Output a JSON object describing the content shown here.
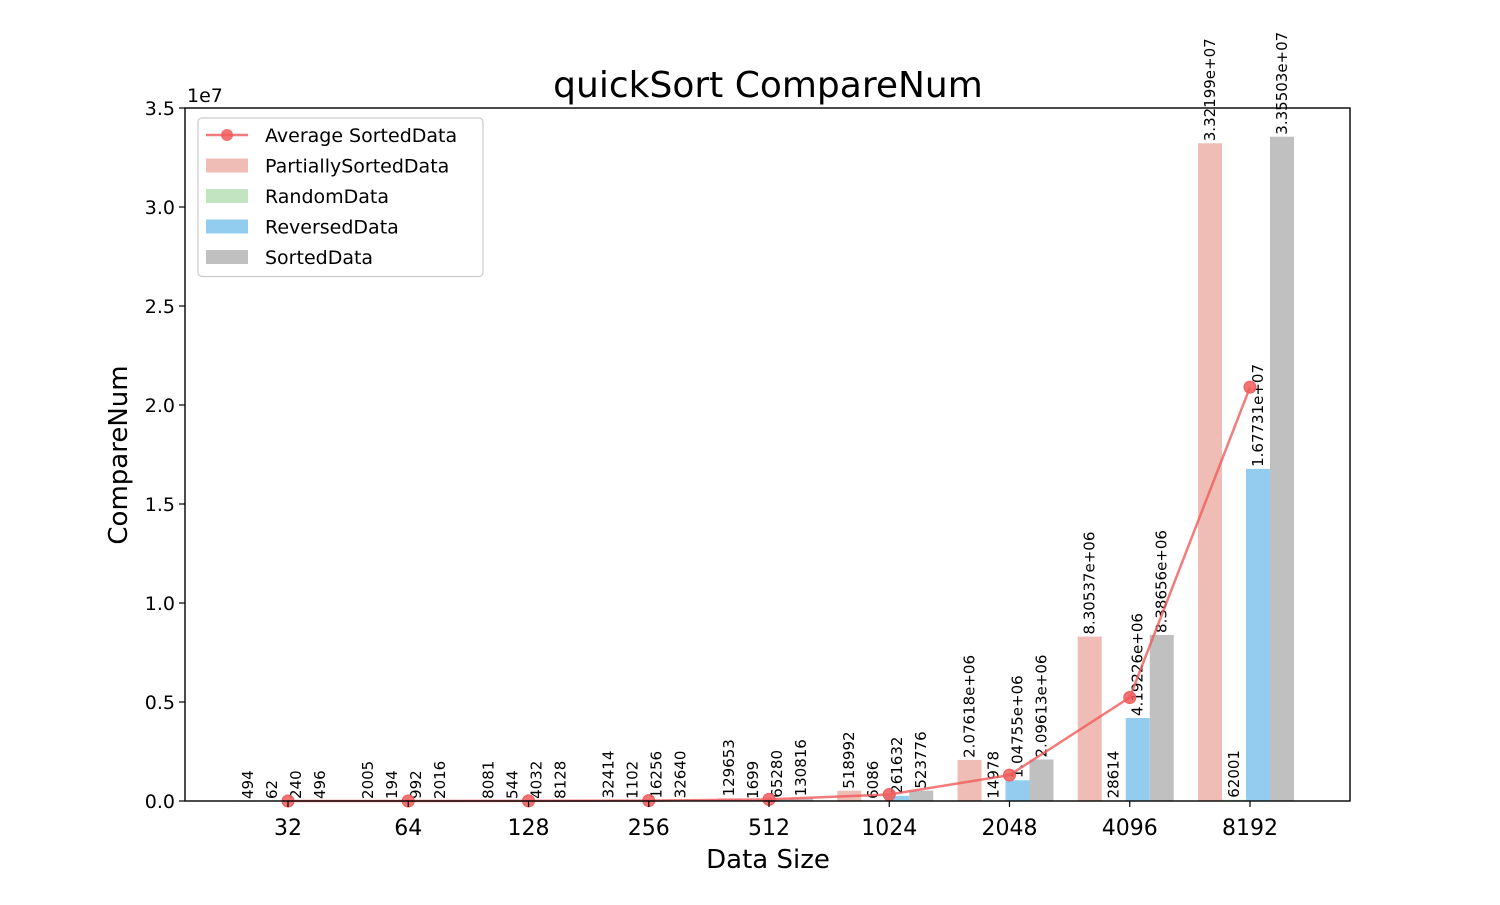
{
  "chart_data": {
    "type": "bar",
    "title": "quickSort CompareNum",
    "xlabel": "Data Size",
    "ylabel": "CompareNum",
    "y_scale_label": "1e7",
    "categories": [
      "32",
      "64",
      "128",
      "256",
      "512",
      "1024",
      "2048",
      "4096",
      "8192"
    ],
    "ylim": [
      0,
      35000000
    ],
    "yticks": [
      0,
      5000000,
      10000000,
      15000000,
      20000000,
      25000000,
      30000000,
      35000000
    ],
    "ytick_labels": [
      "0.0",
      "0.5",
      "1.0",
      "1.5",
      "2.0",
      "2.5",
      "3.0",
      "3.5"
    ],
    "grid": false,
    "legend_position": "top-left",
    "series": [
      {
        "name": "PartiallySortedData",
        "kind": "bar",
        "color": "#efbdb5",
        "values": [
          494,
          2005,
          8081,
          32414,
          129653,
          518992,
          2076180,
          8305370,
          33219900
        ],
        "labels": [
          "494",
          "2005",
          "8081",
          "32414",
          "129653",
          "518992",
          "2.07618e+06",
          "8.30537e+06",
          "3.32199e+07"
        ]
      },
      {
        "name": "RandomData",
        "kind": "bar",
        "color": "#c3e4c0",
        "values": [
          62,
          194,
          544,
          1102,
          1699,
          6086,
          14978,
          28614,
          62001
        ],
        "labels": [
          "62",
          "194",
          "544",
          "1102",
          "1699",
          "6086",
          "14978",
          "28614",
          "62001"
        ]
      },
      {
        "name": "ReversedData",
        "kind": "bar",
        "color": "#92cdf0",
        "values": [
          240,
          992,
          4032,
          16256,
          65280,
          261632,
          1047550,
          4192260,
          16773100
        ],
        "labels": [
          "240",
          "992",
          "4032",
          "16256",
          "65280",
          "261632",
          "1.04755e+06",
          "4.19226e+06",
          "1.67731e+07"
        ]
      },
      {
        "name": "SortedData",
        "kind": "bar",
        "color": "#c0c0c0",
        "values": [
          496,
          2016,
          8128,
          32640,
          130816,
          523776,
          2096130,
          8386560,
          33550300
        ],
        "labels": [
          "496",
          "2016",
          "8128",
          "32640",
          "130816",
          "523776",
          "2.09613e+06",
          "8.38656e+06",
          "3.35503e+07"
        ]
      },
      {
        "name": "Average SortedData",
        "kind": "line",
        "color": "#f05a5a",
        "values": [
          323,
          1302,
          5196,
          20603,
          81862,
          327622,
          1308710,
          5228210,
          20901300
        ]
      }
    ]
  }
}
